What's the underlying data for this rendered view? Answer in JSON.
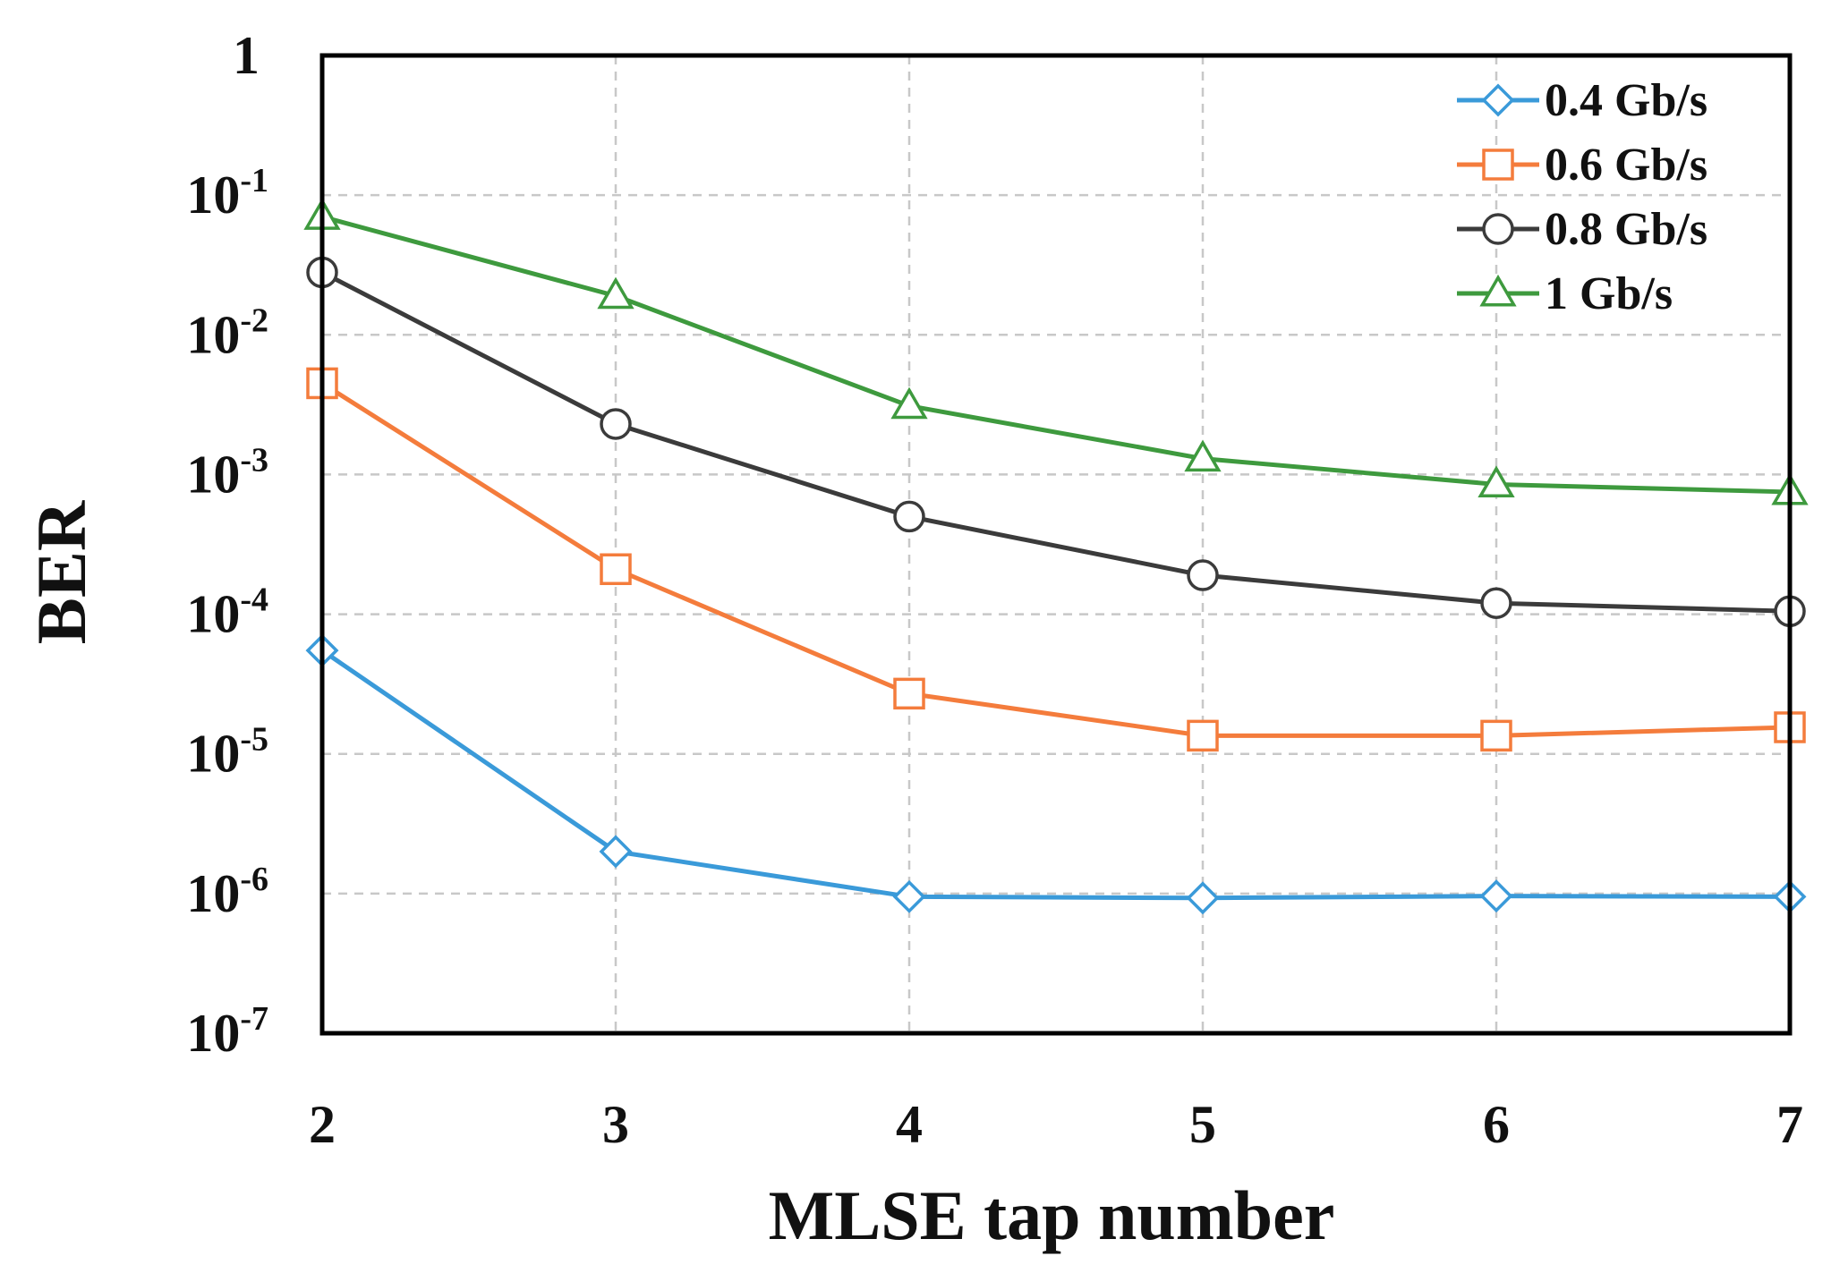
{
  "chart_data": {
    "type": "line",
    "title": "",
    "xlabel": "MLSE tap number",
    "ylabel": "BER",
    "x": [
      2,
      3,
      4,
      5,
      6,
      7
    ],
    "xlim": [
      2,
      7
    ],
    "ylim": [
      1e-07,
      1
    ],
    "yscale": "log",
    "grid": true,
    "legend_position": "top-right",
    "x_ticks": [
      "2",
      "3",
      "4",
      "5",
      "6",
      "7"
    ],
    "y_ticks": [
      {
        "base": "1",
        "exp": ""
      },
      {
        "base": "10",
        "exp": "-1"
      },
      {
        "base": "10",
        "exp": "-2"
      },
      {
        "base": "10",
        "exp": "-3"
      },
      {
        "base": "10",
        "exp": "-4"
      },
      {
        "base": "10",
        "exp": "-5"
      },
      {
        "base": "10",
        "exp": "-6"
      },
      {
        "base": "10",
        "exp": "-7"
      }
    ],
    "series": [
      {
        "name": "0.4 Gb/s",
        "color": "#3a9ad9",
        "marker": "diamond",
        "values": [
          5.5e-05,
          2e-06,
          9.5e-07,
          9.3e-07,
          9.6e-07,
          9.5e-07
        ]
      },
      {
        "name": "0.6 Gb/s",
        "color": "#f47c3c",
        "marker": "square",
        "values": [
          0.0045,
          0.00021,
          2.7e-05,
          1.35e-05,
          1.35e-05,
          1.55e-05
        ]
      },
      {
        "name": "0.8 Gb/s",
        "color": "#3b3b3b",
        "marker": "circle",
        "values": [
          0.028,
          0.0023,
          0.0005,
          0.00019,
          0.00012,
          0.000105
        ]
      },
      {
        "name": "1 Gb/s",
        "color": "#3e9a3e",
        "marker": "triangle",
        "values": [
          0.07,
          0.019,
          0.0031,
          0.0013,
          0.00085,
          0.00075
        ]
      }
    ]
  }
}
